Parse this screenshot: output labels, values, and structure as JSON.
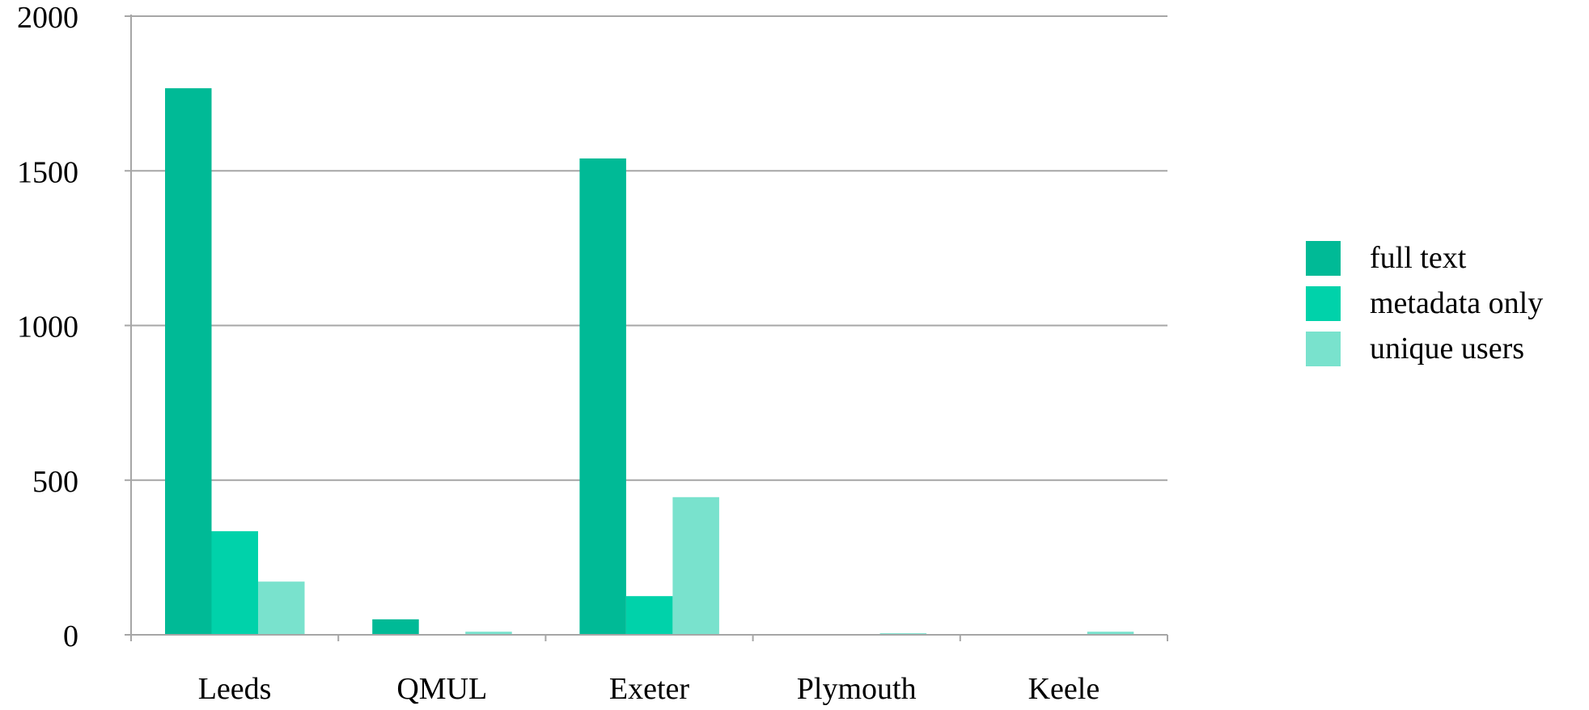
{
  "chart_data": {
    "type": "bar",
    "title": "",
    "xlabel": "",
    "ylabel": "",
    "categories": [
      "Leeds",
      "QMUL",
      "Exeter",
      "Plymouth",
      "Keele"
    ],
    "series": [
      {
        "name": "full text",
        "values": [
          1767,
          50,
          1540,
          0,
          0
        ],
        "color": "#00BA96"
      },
      {
        "name": "metadata only",
        "values": [
          335,
          0,
          125,
          0,
          0
        ],
        "color": "#00D2AA"
      },
      {
        "name": "unique users",
        "values": [
          172,
          10,
          445,
          5,
          10
        ],
        "color": "#79E2CD"
      }
    ],
    "ylim": [
      0,
      2000
    ],
    "yticks": [
      0,
      500,
      1000,
      1500,
      2000
    ],
    "grid": true,
    "legend": "right"
  }
}
